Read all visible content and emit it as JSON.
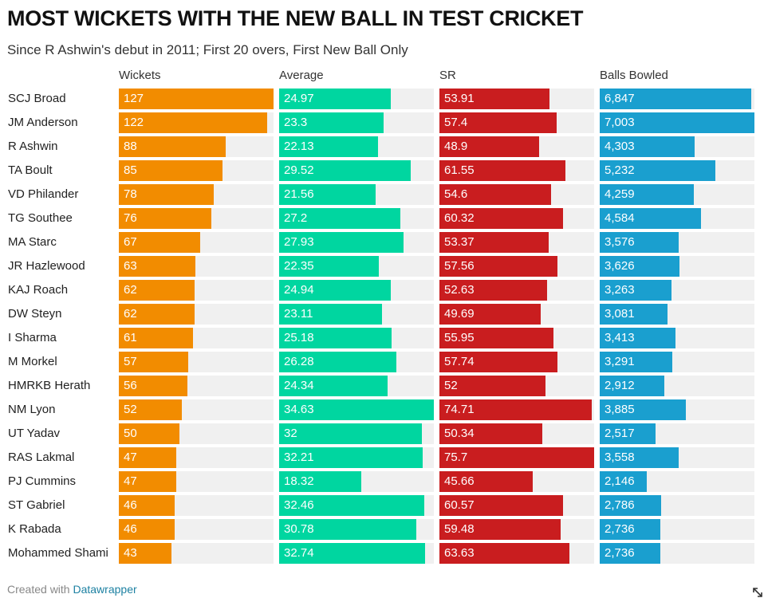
{
  "title": "MOST WICKETS WITH THE NEW BALL IN TEST CRICKET",
  "subtitle": "Since R Ashwin's debut in 2011; First 20 overs, First New Ball Only",
  "footer": {
    "prefix": "Created with ",
    "link": "Datawrapper"
  },
  "colors": {
    "Wickets": "#f28c00",
    "Average": "#00d6a0",
    "SR": "#c91d1f",
    "Balls Bowled": "#1a9fcf",
    "track": "#f0f0f0"
  },
  "chart_data": {
    "type": "bar",
    "orientation": "horizontal",
    "categories": [
      "SCJ Broad",
      "JM Anderson",
      "R Ashwin",
      "TA Boult",
      "VD Philander",
      "TG Southee",
      "MA Starc",
      "JR Hazlewood",
      "KAJ Roach",
      "DW Steyn",
      "I Sharma",
      "M Morkel",
      "HMRKB Herath",
      "NM Lyon",
      "UT Yadav",
      "RAS Lakmal",
      "PJ Cummins",
      "ST Gabriel",
      "K Rabada",
      "Mohammed Shami"
    ],
    "series": [
      {
        "name": "Wickets",
        "values": [
          127,
          122,
          88,
          85,
          78,
          76,
          67,
          63,
          62,
          62,
          61,
          57,
          56,
          52,
          50,
          47,
          47,
          46,
          46,
          43
        ],
        "labels": [
          "127",
          "122",
          "88",
          "85",
          "78",
          "76",
          "67",
          "63",
          "62",
          "62",
          "61",
          "57",
          "56",
          "52",
          "50",
          "47",
          "47",
          "46",
          "46",
          "43"
        ]
      },
      {
        "name": "Average",
        "values": [
          24.97,
          23.3,
          22.13,
          29.52,
          21.56,
          27.2,
          27.93,
          22.35,
          24.94,
          23.11,
          25.18,
          26.28,
          24.34,
          34.63,
          32,
          32.21,
          18.32,
          32.46,
          30.78,
          32.74
        ],
        "labels": [
          "24.97",
          "23.3",
          "22.13",
          "29.52",
          "21.56",
          "27.2",
          "27.93",
          "22.35",
          "24.94",
          "23.11",
          "25.18",
          "26.28",
          "24.34",
          "34.63",
          "32",
          "32.21",
          "18.32",
          "32.46",
          "30.78",
          "32.74"
        ]
      },
      {
        "name": "SR",
        "values": [
          53.91,
          57.4,
          48.9,
          61.55,
          54.6,
          60.32,
          53.37,
          57.56,
          52.63,
          49.69,
          55.95,
          57.74,
          52,
          74.71,
          50.34,
          75.7,
          45.66,
          60.57,
          59.48,
          63.63
        ],
        "labels": [
          "53.91",
          "57.4",
          "48.9",
          "61.55",
          "54.6",
          "60.32",
          "53.37",
          "57.56",
          "52.63",
          "49.69",
          "55.95",
          "57.74",
          "52",
          "74.71",
          "50.34",
          "75.7",
          "45.66",
          "60.57",
          "59.48",
          "63.63"
        ]
      },
      {
        "name": "Balls Bowled",
        "values": [
          6847,
          7003,
          4303,
          5232,
          4259,
          4584,
          3576,
          3626,
          3263,
          3081,
          3413,
          3291,
          2912,
          3885,
          2517,
          3558,
          2146,
          2786,
          2736,
          2736
        ],
        "labels": [
          "6,847",
          "7,003",
          "4,303",
          "5,232",
          "4,259",
          "4,584",
          "3,576",
          "3,626",
          "3,263",
          "3,081",
          "3,413",
          "3,291",
          "2,912",
          "3,885",
          "2,517",
          "3,558",
          "2,146",
          "2,786",
          "2,736",
          "2,736"
        ]
      }
    ]
  }
}
